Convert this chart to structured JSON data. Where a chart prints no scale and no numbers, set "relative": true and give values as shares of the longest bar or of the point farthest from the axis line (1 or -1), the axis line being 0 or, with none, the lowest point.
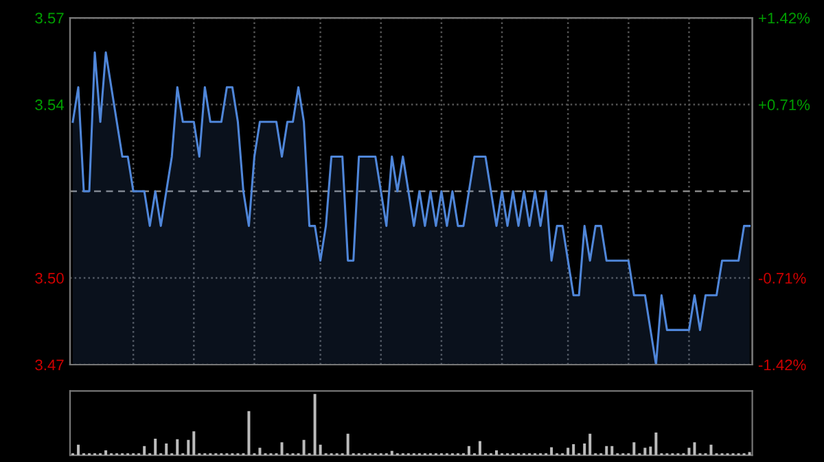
{
  "chart_data": [
    {
      "type": "line",
      "categories": [
        null,
        null,
        null,
        null,
        null,
        null,
        null,
        null,
        null,
        null,
        null,
        null,
        null,
        null,
        null,
        null,
        null,
        null,
        null,
        null,
        null,
        null,
        null,
        null,
        null,
        null,
        null,
        null,
        null,
        null,
        null,
        null,
        null,
        null,
        null,
        null,
        null,
        null,
        null,
        null,
        null,
        null,
        null,
        null,
        null,
        null,
        null,
        null,
        null,
        null,
        null,
        null,
        null,
        null,
        null,
        null,
        null,
        null,
        null,
        null,
        null,
        null,
        null,
        null,
        null,
        null,
        null,
        null,
        null,
        null,
        null,
        null,
        null,
        null,
        null,
        null,
        null,
        null,
        null,
        null,
        null,
        null,
        null,
        null,
        null,
        null,
        null,
        null,
        null,
        null,
        null,
        null,
        null,
        null,
        null,
        null,
        null,
        null,
        null,
        null,
        null,
        null,
        null,
        null,
        null,
        null,
        null,
        null,
        null,
        null,
        null,
        null,
        null,
        null,
        null,
        null,
        null,
        null,
        null,
        null,
        null,
        null,
        null,
        null
      ],
      "series": [
        {
          "color": "#4f86d9",
          "values": [
            3.54,
            3.55,
            3.52,
            3.52,
            3.56,
            3.54,
            3.56,
            3.55,
            3.54,
            3.53,
            3.53,
            3.52,
            3.52,
            3.52,
            3.51,
            3.52,
            3.51,
            3.52,
            3.53,
            3.55,
            3.54,
            3.54,
            3.54,
            3.53,
            3.55,
            3.54,
            3.54,
            3.54,
            3.55,
            3.55,
            3.54,
            3.52,
            3.51,
            3.53,
            3.54,
            3.54,
            3.54,
            3.54,
            3.53,
            3.54,
            3.54,
            3.55,
            3.54,
            3.51,
            3.51,
            3.5,
            3.51,
            3.53,
            3.53,
            3.53,
            3.5,
            3.5,
            3.53,
            3.53,
            3.53,
            3.53,
            3.52,
            3.51,
            3.53,
            3.52,
            3.53,
            3.52,
            3.51,
            3.52,
            3.51,
            3.52,
            3.51,
            3.52,
            3.51,
            3.52,
            3.51,
            3.51,
            3.52,
            3.53,
            3.53,
            3.53,
            3.52,
            3.51,
            3.52,
            3.51,
            3.52,
            3.51,
            3.52,
            3.51,
            3.52,
            3.51,
            3.52,
            3.5,
            3.51,
            3.51,
            3.5,
            3.49,
            3.49,
            3.51,
            3.5,
            3.51,
            3.51,
            3.5,
            3.5,
            3.5,
            3.5,
            3.5,
            3.49,
            3.49,
            3.49,
            3.48,
            3.47,
            3.49,
            3.48,
            3.48,
            3.48,
            3.48,
            3.48,
            3.49,
            3.48,
            3.49,
            3.49,
            3.49,
            3.5,
            3.5,
            3.5,
            3.5,
            3.51,
            3.51
          ]
        }
      ],
      "ylim": [
        3.47,
        3.57
      ],
      "yticks": [
        3.57,
        {
          "value": 3.545,
          "label": "3.54"
        },
        {
          "value": 3.495,
          "label": "3.50"
        },
        3.47
      ],
      "y2lim": [
        -1.42,
        1.42
      ],
      "y2ticks": [
        {
          "value": 1.42,
          "label": "+1.42%"
        },
        {
          "value": 0.71,
          "label": "+0.71%"
        },
        {
          "value": -0.71,
          "label": "-0.71%"
        },
        {
          "value": -1.42,
          "label": "-1.42%"
        }
      ],
      "ref_lines": [
        {
          "axis": "y",
          "value": 3.52,
          "color": "#888888",
          "line_style": "dashed"
        }
      ],
      "grid": true,
      "tick_labels": "y",
      "legend": false
    },
    {
      "type": "bar",
      "relative": true,
      "categories": [
        null,
        null,
        null,
        null,
        null,
        null,
        null,
        null,
        null,
        null,
        null,
        null,
        null,
        null,
        null,
        null,
        null,
        null,
        null,
        null,
        null,
        null,
        null,
        null,
        null,
        null,
        null,
        null,
        null,
        null,
        null,
        null,
        null,
        null,
        null,
        null,
        null,
        null,
        null,
        null,
        null,
        null,
        null,
        null,
        null,
        null,
        null,
        null,
        null,
        null,
        null,
        null,
        null,
        null,
        null,
        null,
        null,
        null,
        null,
        null,
        null,
        null,
        null,
        null,
        null,
        null,
        null,
        null,
        null,
        null,
        null,
        null,
        null,
        null,
        null,
        null,
        null,
        null,
        null,
        null,
        null,
        null,
        null,
        null,
        null,
        null,
        null,
        null,
        null,
        null,
        null,
        null,
        null,
        null,
        null,
        null,
        null,
        null,
        null,
        null,
        null,
        null,
        null,
        null,
        null,
        null,
        null,
        null,
        null,
        null,
        null,
        null,
        null,
        null,
        null,
        null,
        null,
        null,
        null,
        null,
        null,
        null,
        null,
        null
      ],
      "series": [
        {
          "color": "#bbbbbb",
          "values": [
            0.03,
            0.17,
            0.03,
            0.03,
            0.03,
            0.03,
            0.08,
            0.03,
            0.03,
            0.03,
            0.03,
            0.03,
            0.03,
            0.15,
            0.03,
            0.27,
            0.03,
            0.19,
            0.03,
            0.26,
            0.03,
            0.25,
            0.39,
            0.03,
            0.03,
            0.03,
            0.03,
            0.03,
            0.03,
            0.03,
            0.03,
            0.03,
            0.72,
            0.03,
            0.12,
            0.03,
            0.03,
            0.03,
            0.21,
            0.03,
            0.03,
            0.03,
            0.25,
            0.03,
            1,
            0.17,
            0.03,
            0.03,
            0.03,
            0.03,
            0.35,
            0.03,
            0.03,
            0.03,
            0.03,
            0.03,
            0.03,
            0.03,
            0.07,
            0.03,
            0.03,
            0.03,
            0.03,
            0.03,
            0.03,
            0.03,
            0.03,
            0.03,
            0.03,
            0.03,
            0.03,
            0.03,
            0.15,
            0.03,
            0.23,
            0.03,
            0.03,
            0.08,
            0.03,
            0.03,
            0.03,
            0.03,
            0.03,
            0.03,
            0.03,
            0.03,
            0.03,
            0.13,
            0.03,
            0.03,
            0.12,
            0.18,
            0.03,
            0.19,
            0.35,
            0.03,
            0.03,
            0.15,
            0.15,
            0.03,
            0.03,
            0.03,
            0.21,
            0.03,
            0.12,
            0.14,
            0.37,
            0.03,
            0.03,
            0.03,
            0.03,
            0.03,
            0.12,
            0.21,
            0.03,
            0.03,
            0.17,
            0.03,
            0.03,
            0.03,
            0.03,
            0.03,
            0.03,
            0.05
          ]
        }
      ],
      "tick_labels": false,
      "legend": false
    }
  ]
}
